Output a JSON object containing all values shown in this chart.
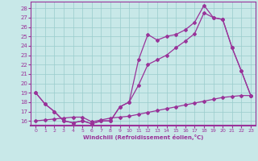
{
  "x": [
    0,
    1,
    2,
    3,
    4,
    5,
    6,
    7,
    8,
    9,
    10,
    11,
    12,
    13,
    14,
    15,
    16,
    17,
    18,
    19,
    20,
    21,
    22,
    23
  ],
  "series1_y": [
    19.0,
    17.8,
    17.0,
    16.0,
    15.8,
    16.0,
    15.7,
    16.0,
    16.0,
    17.5,
    18.0,
    22.5,
    25.2,
    24.6,
    25.0,
    25.2,
    25.7,
    26.5,
    28.3,
    27.0,
    26.8,
    23.8,
    21.3,
    18.7
  ],
  "series2_y": [
    19.0,
    17.8,
    17.0,
    16.0,
    15.8,
    16.0,
    15.7,
    16.0,
    16.0,
    17.5,
    18.0,
    19.8,
    22.0,
    22.5,
    23.0,
    23.8,
    24.5,
    25.3,
    27.5,
    27.0,
    26.8,
    23.8,
    21.3,
    18.7
  ],
  "series3_y": [
    16.0,
    16.1,
    16.2,
    16.3,
    16.4,
    16.4,
    15.9,
    16.1,
    16.3,
    16.4,
    16.5,
    16.7,
    16.9,
    17.1,
    17.3,
    17.5,
    17.7,
    17.9,
    18.1,
    18.3,
    18.5,
    18.6,
    18.7,
    18.7
  ],
  "color": "#993399",
  "bg_color": "#c8e8e8",
  "grid_color": "#99cccc",
  "xlabel": "Windchill (Refroidissement éolien,°C)",
  "xlim_min": -0.5,
  "xlim_max": 23.5,
  "ylim_min": 15.5,
  "ylim_max": 28.7,
  "yticks": [
    16,
    17,
    18,
    19,
    20,
    21,
    22,
    23,
    24,
    25,
    26,
    27,
    28
  ],
  "xticks": [
    0,
    1,
    2,
    3,
    4,
    5,
    6,
    7,
    8,
    9,
    10,
    11,
    12,
    13,
    14,
    15,
    16,
    17,
    18,
    19,
    20,
    21,
    22,
    23
  ]
}
